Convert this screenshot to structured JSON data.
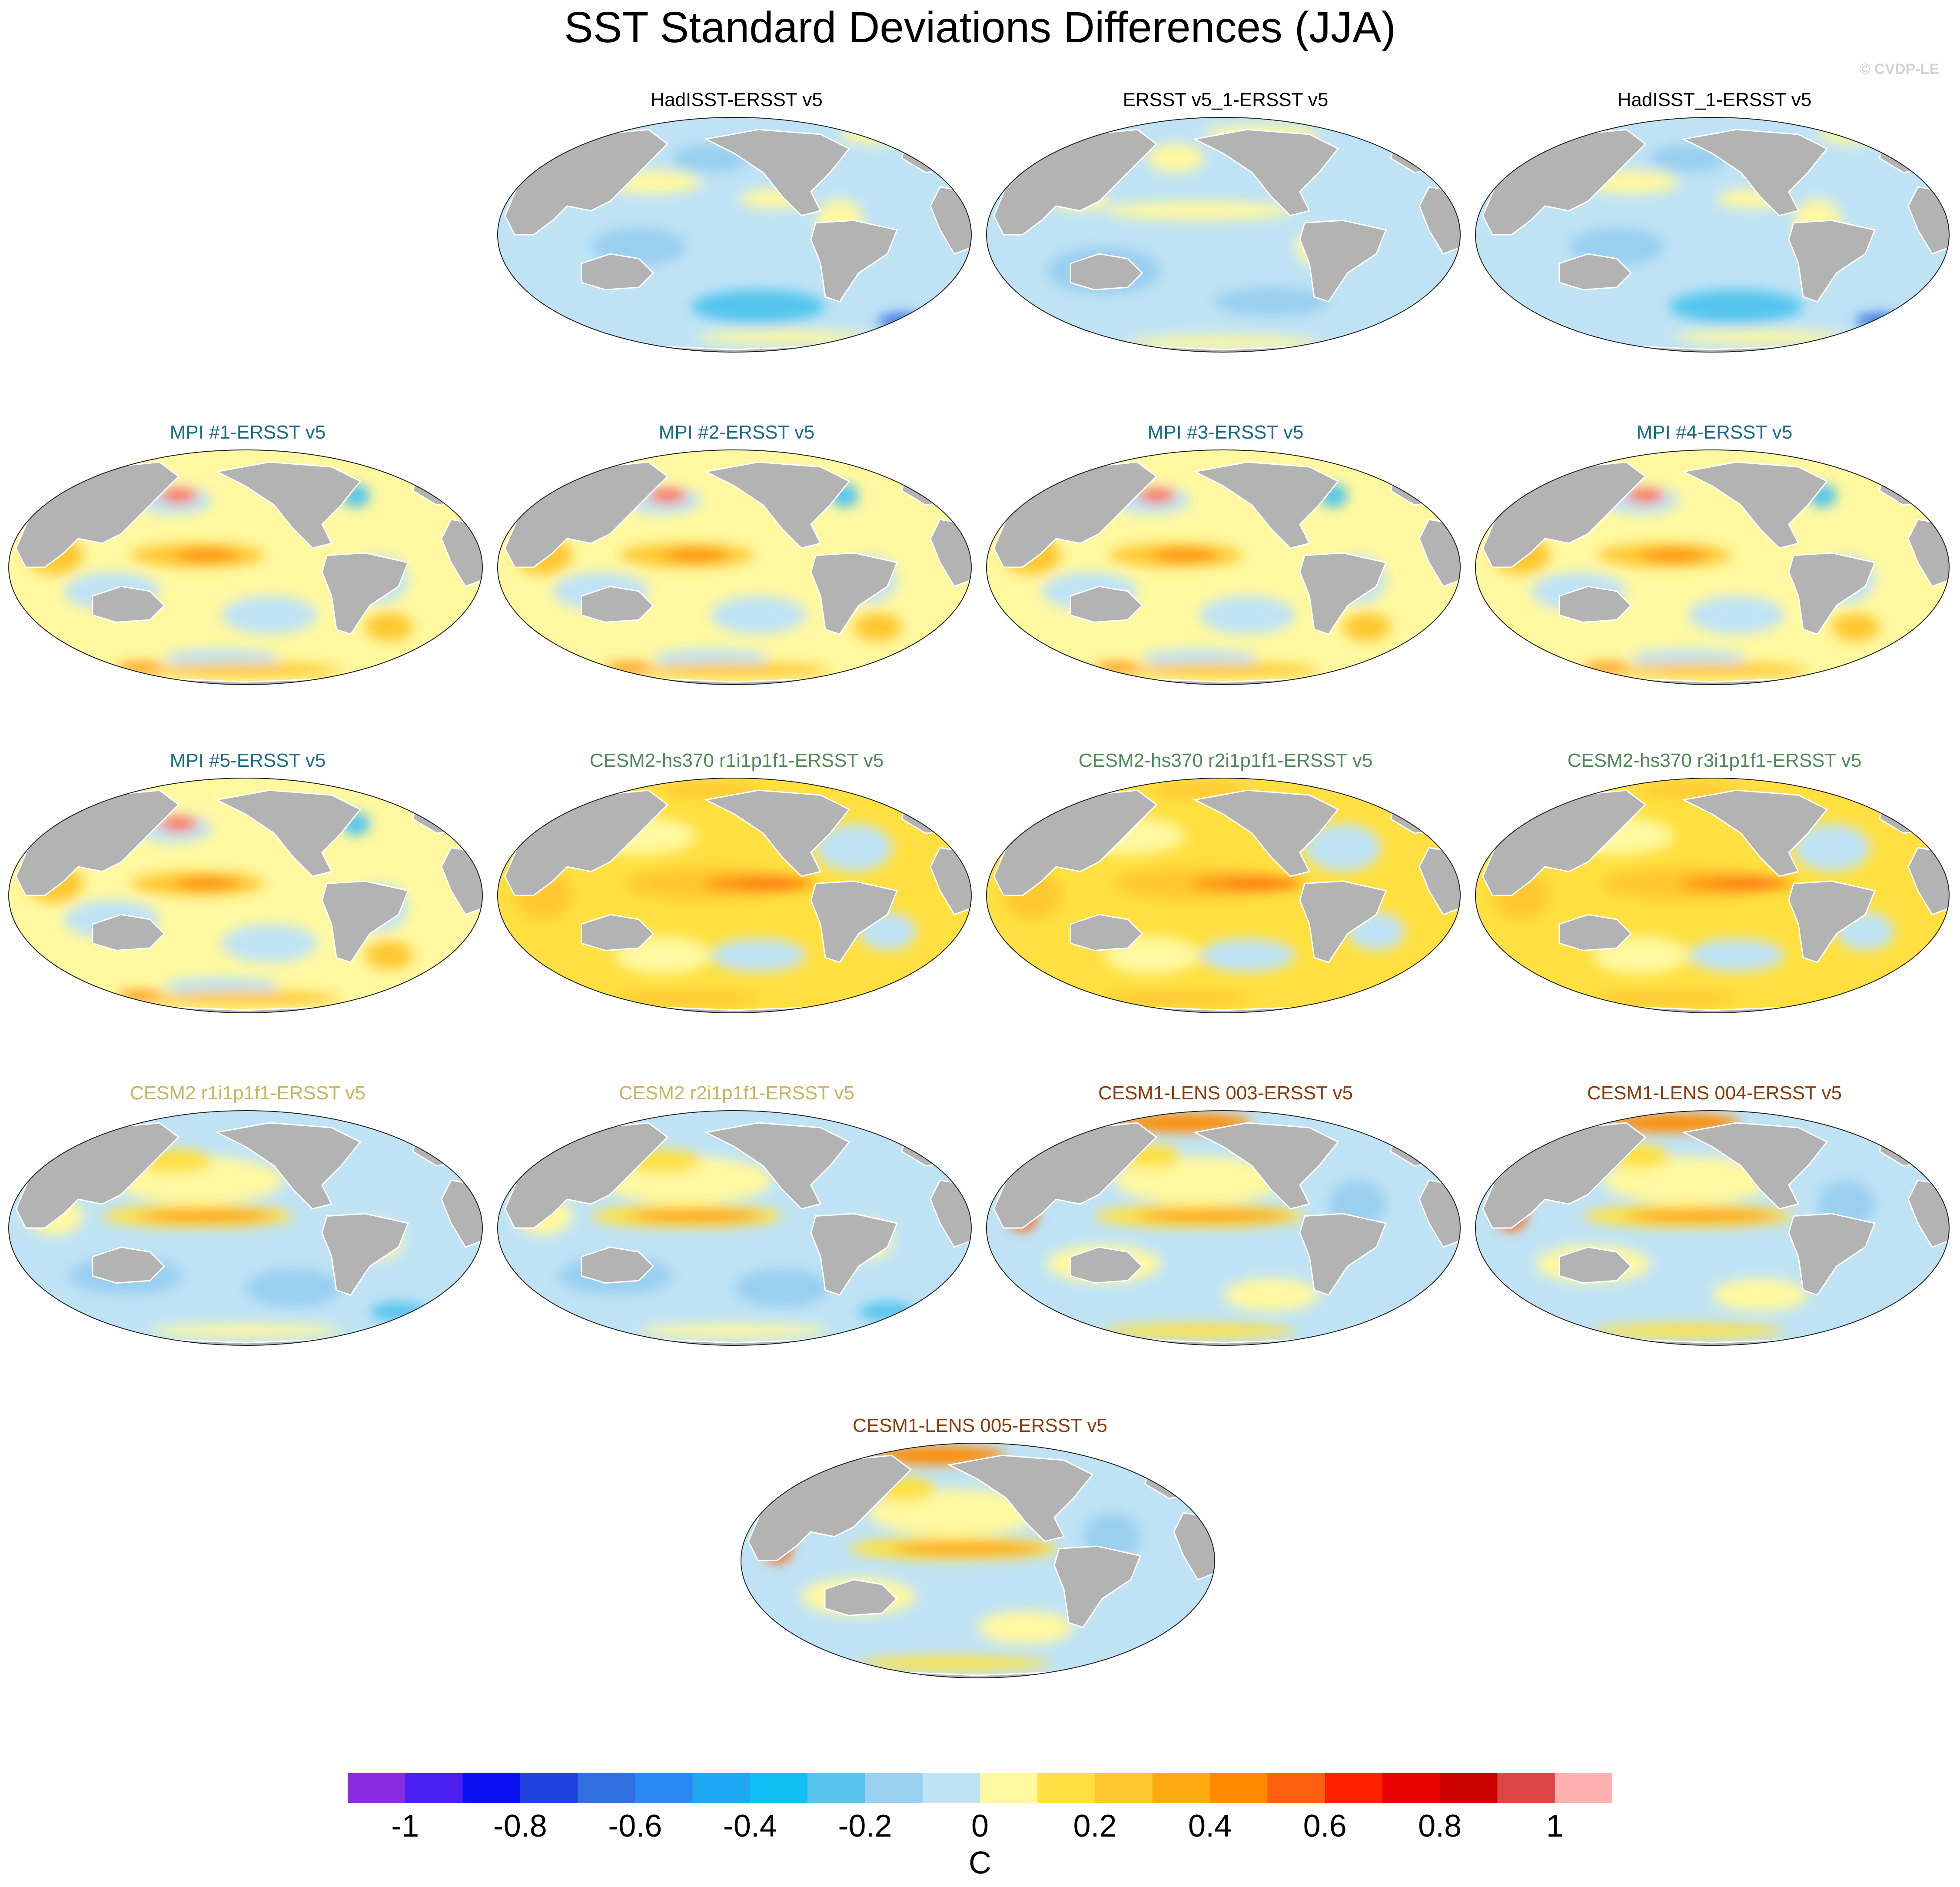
{
  "title": "SST Standard Deviations Differences (JJA)",
  "credit": "© CVDP-LE",
  "panels": [
    {
      "label": "HadISST-ERSST v5",
      "color": "#000000",
      "pattern": "obs1"
    },
    {
      "label": "ERSST v5_1-ERSST v5",
      "color": "#000000",
      "pattern": "obs2"
    },
    {
      "label": "HadISST_1-ERSST v5",
      "color": "#000000",
      "pattern": "obs1"
    },
    {
      "label": "MPI #1-ERSST v5",
      "color": "#1b6b8a",
      "pattern": "mpi"
    },
    {
      "label": "MPI #2-ERSST v5",
      "color": "#1b6b8a",
      "pattern": "mpi"
    },
    {
      "label": "MPI #3-ERSST v5",
      "color": "#1b6b8a",
      "pattern": "mpi"
    },
    {
      "label": "MPI #4-ERSST v5",
      "color": "#1b6b8a",
      "pattern": "mpi"
    },
    {
      "label": "MPI #5-ERSST v5",
      "color": "#1b6b8a",
      "pattern": "mpi"
    },
    {
      "label": "CESM2-hs370 r1i1p1f1-ERSST v5",
      "color": "#4f8a57",
      "pattern": "warm"
    },
    {
      "label": "CESM2-hs370 r2i1p1f1-ERSST v5",
      "color": "#4f8a57",
      "pattern": "warm"
    },
    {
      "label": "CESM2-hs370 r3i1p1f1-ERSST v5",
      "color": "#4f8a57",
      "pattern": "warm"
    },
    {
      "label": "CESM2 r1i1p1f1-ERSST v5",
      "color": "#c9b45e",
      "pattern": "cesm2"
    },
    {
      "label": "CESM2 r2i1p1f1-ERSST v5",
      "color": "#c9b45e",
      "pattern": "cesm2"
    },
    {
      "label": "CESM1-LENS 003-ERSST v5",
      "color": "#8a3a0a",
      "pattern": "lens"
    },
    {
      "label": "CESM1-LENS 004-ERSST v5",
      "color": "#8a3a0a",
      "pattern": "lens"
    },
    {
      "label": "CESM1-LENS 005-ERSST v5",
      "color": "#8a3a0a",
      "pattern": "lens"
    }
  ],
  "colorbar": {
    "unit": "C",
    "ticks": [
      "-1",
      "-0.8",
      "-0.6",
      "-0.4",
      "-0.2",
      "0",
      "0.2",
      "0.4",
      "0.6",
      "0.8",
      "1"
    ],
    "colors": [
      "#8a2be2",
      "#4a20f0",
      "#0a10f0",
      "#2040e0",
      "#3070e0",
      "#2a8af5",
      "#20a8f5",
      "#10c0f5",
      "#55c5ee",
      "#9acff0",
      "#bfe3f5",
      "#fff8a0",
      "#ffe040",
      "#ffc830",
      "#ffaa10",
      "#ff8a00",
      "#ff6010",
      "#ff2000",
      "#e80000",
      "#c80000",
      "#dd4444",
      "#ffb0b0"
    ]
  }
}
